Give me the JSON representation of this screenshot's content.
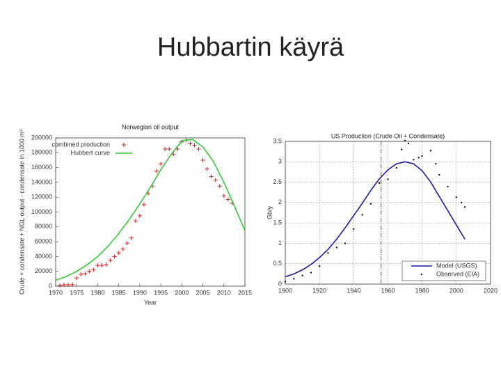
{
  "title": "Hubbartin käyrä",
  "chart_data": [
    {
      "type": "line",
      "title": "Norwegian oil output",
      "xlabel": "Year",
      "ylabel": "Crude + condensate + NGL output - condensate in 1000 m³",
      "xlim": [
        1970,
        2015
      ],
      "xticks": [
        1970,
        1975,
        1980,
        1985,
        1990,
        1995,
        2000,
        2005,
        2010,
        2015
      ],
      "ylim": [
        0,
        200000
      ],
      "yticks": [
        0,
        20000,
        40000,
        60000,
        80000,
        100000,
        120000,
        140000,
        160000,
        180000,
        200000
      ],
      "grid": false,
      "legend": "upper left",
      "series": [
        {
          "name": "combined production",
          "color": "#d02020",
          "marker": "+",
          "x": [
            1971,
            1972,
            1973,
            1974,
            1975,
            1976,
            1977,
            1978,
            1979,
            1980,
            1981,
            1982,
            1983,
            1984,
            1985,
            1986,
            1987,
            1988,
            1989,
            1990,
            1991,
            1992,
            1993,
            1994,
            1995,
            1996,
            1997,
            1998,
            1999,
            2000,
            2001,
            2002,
            2003,
            2004,
            2005,
            2006,
            2007,
            2008,
            2009,
            2010,
            2011,
            2012
          ],
          "values": [
            1000,
            1900,
            1900,
            2000,
            11000,
            16000,
            17000,
            20000,
            22000,
            28000,
            28000,
            29000,
            35000,
            40000,
            45000,
            50000,
            58000,
            65000,
            88000,
            95000,
            110000,
            125000,
            135000,
            155000,
            165000,
            185000,
            185000,
            178000,
            185000,
            195000,
            197000,
            192000,
            190000,
            185000,
            170000,
            158000,
            148000,
            143000,
            135000,
            122000,
            117000,
            112000
          ]
        },
        {
          "name": "Hubbert curve",
          "color": "#33cc33",
          "marker": "line",
          "x": [
            1970,
            1972.5,
            1975,
            1977.5,
            1980,
            1982.5,
            1985,
            1987.5,
            1990,
            1992.5,
            1995,
            1997.5,
            2000,
            2002.5,
            2005,
            2007.5,
            2010,
            2012.5,
            2015
          ],
          "values": [
            8000,
            13000,
            20000,
            29000,
            40000,
            54000,
            71000,
            90000,
            111000,
            133000,
            157000,
            178000,
            196000,
            198000,
            188000,
            168000,
            140000,
            108000,
            75000
          ]
        }
      ]
    },
    {
      "type": "line",
      "title": "US Production (Crude Oil + Condensate)",
      "ylabel": "Gb/y",
      "xlim": [
        1900,
        2020
      ],
      "xticks": [
        1900,
        1920,
        1940,
        1960,
        1980,
        2000,
        2020
      ],
      "ylim": [
        0,
        3.5
      ],
      "yticks": [
        0,
        0.5,
        1,
        1.5,
        2,
        2.5,
        3,
        3.5
      ],
      "grid": true,
      "legend": "lower right",
      "vlines": [
        1956
      ],
      "series": [
        {
          "name": "Model (USGS)",
          "color": "#1a1aa8",
          "marker": "line",
          "x": [
            1900,
            1905,
            1910,
            1915,
            1920,
            1925,
            1930,
            1935,
            1940,
            1945,
            1950,
            1955,
            1960,
            1965,
            1970,
            1975,
            1980,
            1985,
            1990,
            1995,
            2000,
            2005
          ],
          "values": [
            0.18,
            0.25,
            0.35,
            0.48,
            0.65,
            0.85,
            1.1,
            1.38,
            1.68,
            1.98,
            2.3,
            2.58,
            2.8,
            2.95,
            3.0,
            2.95,
            2.78,
            2.5,
            2.15,
            1.8,
            1.45,
            1.1
          ]
        },
        {
          "name": "Observed (EIA)",
          "color": "#111111",
          "marker": "dot",
          "x": [
            1900,
            1905,
            1910,
            1915,
            1920,
            1925,
            1930,
            1935,
            1940,
            1945,
            1950,
            1955,
            1960,
            1965,
            1968,
            1970,
            1972,
            1975,
            1978,
            1980,
            1985,
            1988,
            1990,
            1995,
            2000,
            2003,
            2005
          ],
          "values": [
            0.06,
            0.13,
            0.21,
            0.28,
            0.44,
            0.76,
            0.9,
            1.0,
            1.35,
            1.7,
            1.97,
            2.48,
            2.57,
            2.85,
            3.3,
            3.52,
            3.45,
            3.05,
            3.1,
            3.14,
            3.27,
            2.95,
            2.68,
            2.39,
            2.13,
            2.0,
            1.89
          ]
        }
      ]
    }
  ]
}
